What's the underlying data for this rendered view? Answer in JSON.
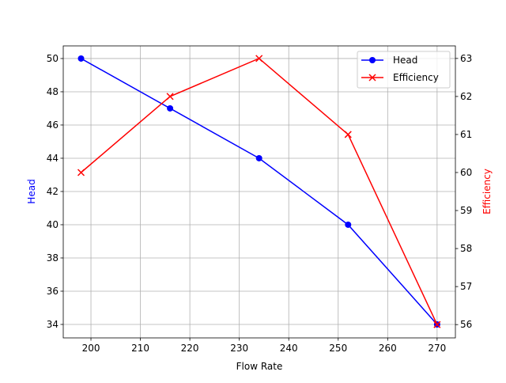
{
  "chart_data": {
    "type": "line",
    "title": "",
    "xlabel": "Flow Rate",
    "ylabel": "Head",
    "y2label": "Efficiency",
    "x": [
      198,
      216,
      234,
      252,
      270
    ],
    "xlim": [
      194.4,
      273.7
    ],
    "ylim": [
      33.19,
      50.76
    ],
    "y2lim": [
      55.65,
      63.33
    ],
    "xticks": [
      200,
      210,
      220,
      230,
      240,
      250,
      260,
      270
    ],
    "yticks": [
      34,
      36,
      38,
      40,
      42,
      44,
      46,
      48,
      50
    ],
    "y2ticks": [
      56,
      57,
      58,
      59,
      60,
      61,
      62,
      63
    ],
    "grid": true,
    "legend_position": "upper right",
    "series": [
      {
        "name": "Head",
        "axis": "left",
        "values": [
          50,
          47,
          44,
          40,
          34
        ],
        "color": "#0000ff",
        "marker": "circle"
      },
      {
        "name": "Efficiency",
        "axis": "right",
        "values": [
          60,
          62,
          63,
          61,
          56
        ],
        "color": "#ff0000",
        "marker": "x"
      }
    ]
  }
}
